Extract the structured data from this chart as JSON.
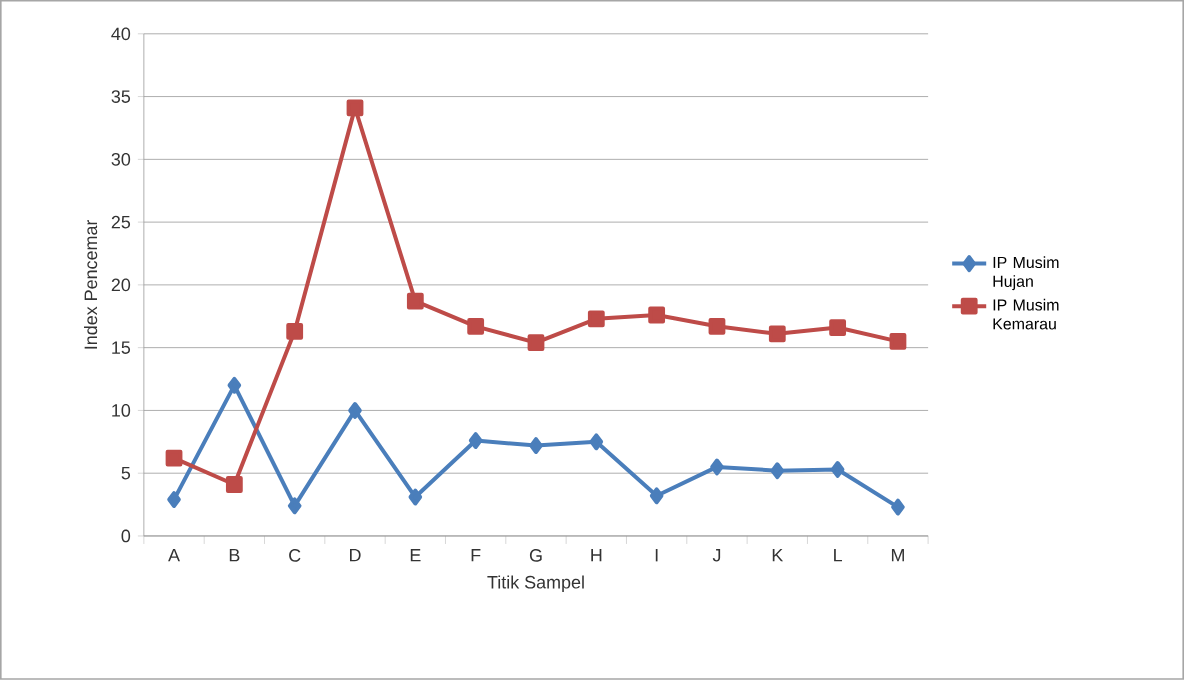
{
  "chart_data": {
    "type": "line",
    "xlabel": "Titik Sampel",
    "ylabel": "Index Pencemar",
    "categories": [
      "A",
      "B",
      "C",
      "D",
      "E",
      "F",
      "G",
      "H",
      "I",
      "J",
      "K",
      "L",
      "M"
    ],
    "series": [
      {
        "name": "IP Musim Hujan",
        "color": "#4a7ebb",
        "marker": "diamond",
        "values": [
          2.9,
          12.0,
          2.4,
          10.0,
          3.1,
          7.6,
          7.2,
          7.5,
          3.2,
          5.5,
          5.2,
          5.3,
          2.3
        ]
      },
      {
        "name": "IP Musim Kemarau",
        "color": "#be4b48",
        "marker": "square",
        "values": [
          6.2,
          4.1,
          16.3,
          34.1,
          18.7,
          16.7,
          15.4,
          17.3,
          17.6,
          16.7,
          16.1,
          16.6,
          15.5
        ]
      }
    ],
    "ylim": [
      0,
      40
    ],
    "yticks": [
      0,
      5,
      10,
      15,
      20,
      25,
      30,
      35,
      40
    ],
    "grid": "y",
    "legend": "right",
    "line_style": "solid"
  }
}
